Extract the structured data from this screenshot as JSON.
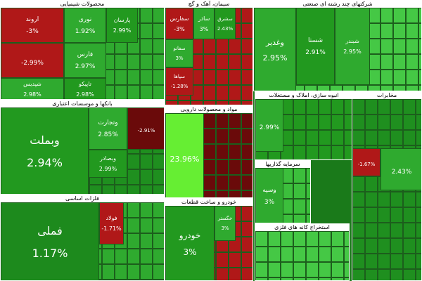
{
  "sectors": [
    {
      "title": "محصولات شیمیایی",
      "tiles": [
        {
          "name": "اروند",
          "change": "-3%"
        },
        {
          "name": "نوری",
          "change": "1.92%"
        },
        {
          "name": "پارسان",
          "change": "2.99%"
        },
        {
          "change": "-2.99%"
        },
        {
          "name": "فارس",
          "change": "2.97%"
        },
        {
          "name": "شپدیس",
          "change": "2.98%"
        },
        {
          "name": "تاپیکو",
          "change": "2.98%"
        }
      ]
    },
    {
      "title": "سیمان، آهک و گچ",
      "tiles": [
        {
          "name": "سفارس",
          "change": "-3%"
        },
        {
          "name": "ساذر",
          "change": "3%"
        },
        {
          "name": "سشرق",
          "change": "2.43%"
        },
        {
          "name": "سفانو",
          "change": "3%"
        },
        {
          "name": "سپاها",
          "change": "-1.28%"
        }
      ]
    },
    {
      "title": "شرکتهای چند رشته ای صنعتی",
      "tiles": [
        {
          "name": "وغدیر",
          "change": "2.95%"
        },
        {
          "name": "شستا",
          "change": "2.91%"
        },
        {
          "name": "شبندر",
          "change": "2.95%"
        }
      ]
    },
    {
      "title": "بانکها و موسسات اعتباری",
      "tiles": [
        {
          "name": "وبملت",
          "change": "2.94%"
        },
        {
          "name": "وتجارت",
          "change": "2.85%"
        },
        {
          "name": "وبصادر",
          "change": "2.99%"
        },
        {
          "change": "-2.91%"
        }
      ]
    },
    {
      "title": "مواد و محصولات دارویی",
      "tiles": [
        {
          "change": "23.96%"
        }
      ]
    },
    {
      "title": "انبوه سازی، املاک و مستغلات",
      "tiles": [
        {
          "change": "2.99%"
        }
      ]
    },
    {
      "title": "سرمایه گذاریها",
      "tiles": [
        {
          "name": "وسپه",
          "change": "3%"
        }
      ]
    },
    {
      "title": "فلزات اساسی",
      "tiles": [
        {
          "name": "فملی",
          "change": "1.17%"
        },
        {
          "name": "فولاد",
          "change": "-1.71%"
        }
      ]
    },
    {
      "title": "خودرو و ساخت قطعات",
      "tiles": [
        {
          "name": "خودرو",
          "change": "3%"
        },
        {
          "name": "خگستر",
          "change": "3%"
        }
      ]
    },
    {
      "title": "استخراج کانه های فلزی",
      "tiles": []
    },
    {
      "title": "مخابرات",
      "tiles": [
        {
          "change": "-1.67%"
        },
        {
          "change": "2.43%"
        }
      ]
    }
  ]
}
